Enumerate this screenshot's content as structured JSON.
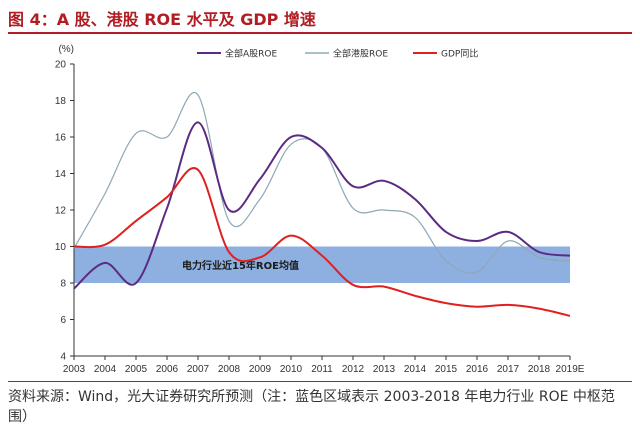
{
  "title": "图 4：A 股、港股 ROE 水平及 GDP 增速",
  "source": "资料来源：Wind，光大证券研究所预测（注：蓝色区域表示 2003-2018 年电力行业 ROE 中枢范围）",
  "chart_data": {
    "type": "line",
    "ylabel": "(%)",
    "ylim": [
      4,
      20
    ],
    "yticks": [
      "4",
      "6",
      "8",
      "10",
      "12",
      "14",
      "16",
      "18",
      "20"
    ],
    "categories": [
      "2003",
      "2004",
      "2005",
      "2006",
      "2007",
      "2008",
      "2009",
      "2010",
      "2011",
      "2012",
      "2013",
      "2014",
      "2015",
      "2016",
      "2017",
      "2018",
      "2019E"
    ],
    "band": {
      "low": 8,
      "high": 10,
      "label": "电力行业近15年ROE均值",
      "color": "#8db0e0"
    },
    "legend_position": "top",
    "series": [
      {
        "name": "全部A股ROE",
        "color": "#5b2b83",
        "values": [
          7.7,
          9.1,
          8.0,
          12.1,
          16.8,
          12.0,
          13.7,
          16.0,
          15.4,
          13.3,
          13.6,
          12.6,
          10.8,
          10.3,
          10.8,
          9.7,
          9.5
        ]
      },
      {
        "name": "全部港股ROE",
        "color": "#8ea8b7",
        "values": [
          9.9,
          12.9,
          16.2,
          16.0,
          18.3,
          11.4,
          12.6,
          15.6,
          15.4,
          12.1,
          12.0,
          11.6,
          9.2,
          8.6,
          10.3,
          9.4,
          9.2
        ]
      },
      {
        "name": "GDP同比",
        "color": "#e02020",
        "values": [
          10.0,
          10.1,
          11.4,
          12.7,
          14.2,
          9.7,
          9.4,
          10.6,
          9.5,
          7.9,
          7.8,
          7.3,
          6.9,
          6.7,
          6.8,
          6.6,
          6.2
        ]
      }
    ]
  }
}
